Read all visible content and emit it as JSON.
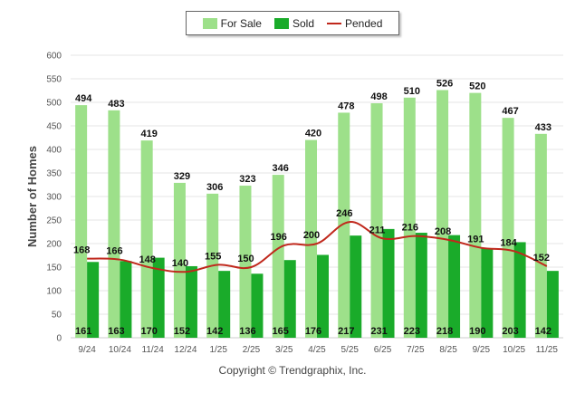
{
  "colors": {
    "for_sale": "#9de08a",
    "sold": "#1aab2a",
    "pended": "#c0281c",
    "grid": "#e6e6e6",
    "axis": "#cccccc"
  },
  "legend": {
    "for_sale": "For Sale",
    "sold": "Sold",
    "pended": "Pended"
  },
  "copyright": "Copyright © Trendgraphix, Inc.",
  "chart_data": {
    "type": "bar",
    "title": "",
    "xlabel": "",
    "ylabel": "Number of Homes",
    "ylim": [
      0,
      600
    ],
    "yticks": [
      0,
      50,
      100,
      150,
      200,
      250,
      300,
      350,
      400,
      450,
      500,
      550,
      600
    ],
    "categories": [
      "9/24",
      "10/24",
      "11/24",
      "12/24",
      "1/25",
      "2/25",
      "3/25",
      "4/25",
      "5/25",
      "6/25",
      "7/25",
      "8/25",
      "9/25",
      "10/25",
      "11/25"
    ],
    "series": [
      {
        "name": "For Sale",
        "kind": "bar",
        "values": [
          494,
          483,
          419,
          329,
          306,
          323,
          346,
          420,
          478,
          498,
          510,
          526,
          520,
          467,
          433
        ]
      },
      {
        "name": "Sold",
        "kind": "bar",
        "values": [
          161,
          163,
          170,
          152,
          142,
          136,
          165,
          176,
          217,
          231,
          223,
          218,
          190,
          203,
          142
        ]
      },
      {
        "name": "Pended",
        "kind": "line",
        "values": [
          168,
          166,
          148,
          140,
          155,
          150,
          196,
          200,
          246,
          211,
          216,
          208,
          191,
          184,
          152
        ]
      }
    ],
    "legend_position": "top-center"
  }
}
